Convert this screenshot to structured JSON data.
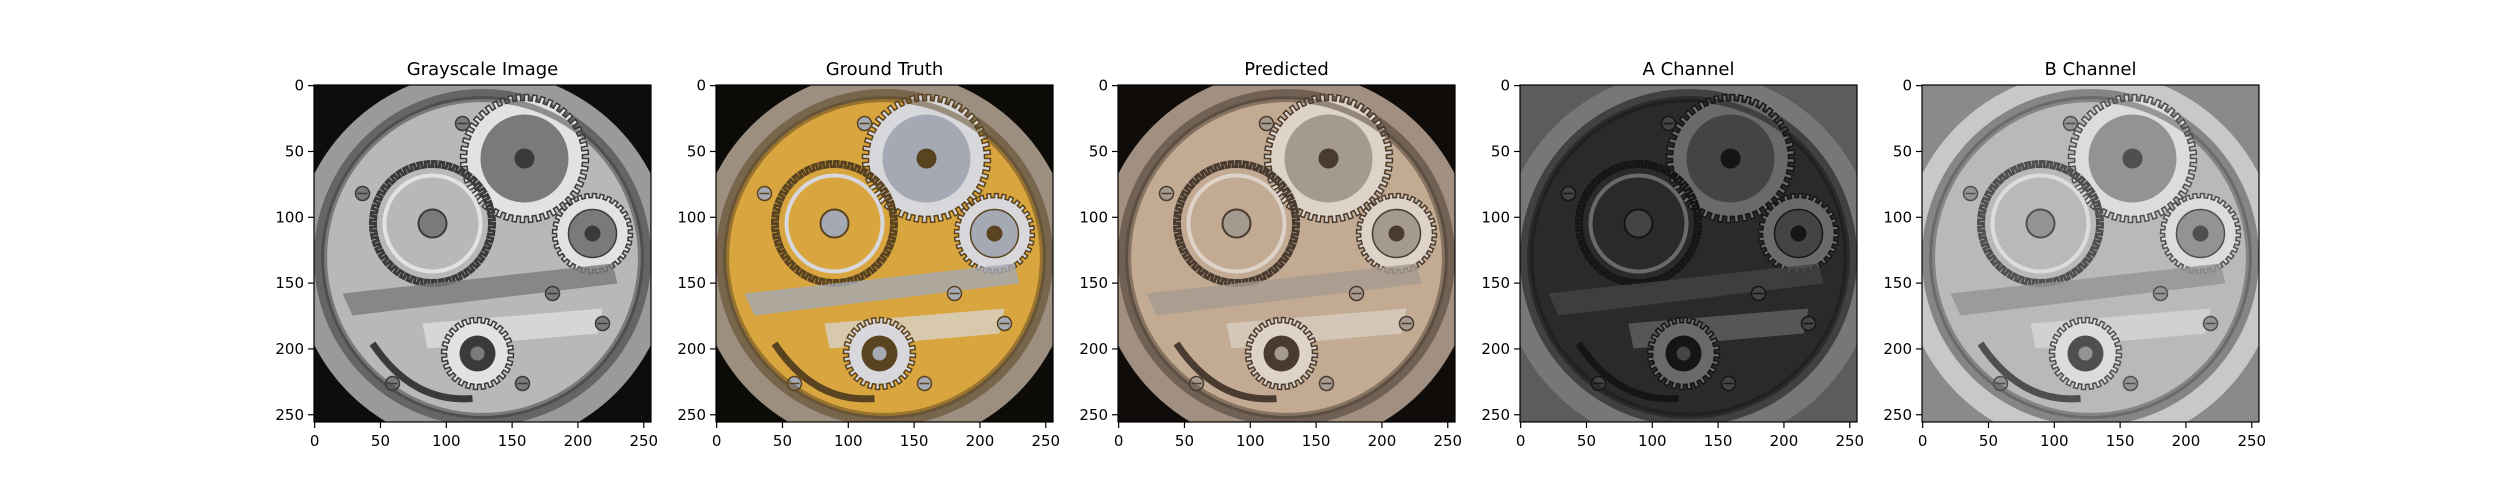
{
  "figure": {
    "panels": [
      {
        "id": "grayscale",
        "title": "Grayscale Image",
        "palette": {
          "bg": "#0d0d0d",
          "rim": "#9a9a9a",
          "plate": "#b8b8b8",
          "dark": "#3a3a3a",
          "light": "#e2e2e2",
          "accent": "#7a7a7a"
        }
      },
      {
        "id": "ground_truth",
        "title": "Ground Truth",
        "palette": {
          "bg": "#0d0b08",
          "rim": "#9c8f80",
          "plate": "#d9a53e",
          "dark": "#5a4320",
          "light": "#d8d8dc",
          "accent": "#a4a9b4"
        }
      },
      {
        "id": "predicted",
        "title": "Predicted",
        "palette": {
          "bg": "#0f0c0a",
          "rim": "#a19081",
          "plate": "#c2ab92",
          "dark": "#4a3b30",
          "light": "#ddd3c8",
          "accent": "#a59a90"
        }
      },
      {
        "id": "a_channel",
        "title": "A Channel",
        "palette": {
          "bg": "#5c5c5c",
          "rim": "#777777",
          "plate": "#2a2a2a",
          "dark": "#151515",
          "light": "#6a6a6a",
          "accent": "#444444"
        }
      },
      {
        "id": "b_channel",
        "title": "B Channel",
        "palette": {
          "bg": "#8a8a8a",
          "rim": "#c8c8c8",
          "plate": "#b9b9b9",
          "dark": "#4f4f4f",
          "light": "#dcdcdc",
          "accent": "#939393"
        }
      }
    ],
    "y_ticks": [
      "0",
      "50",
      "100",
      "150",
      "200",
      "250"
    ],
    "x_ticks": [
      "0",
      "50",
      "100",
      "150",
      "200",
      "250"
    ],
    "y_tick_values": [
      0,
      50,
      100,
      150,
      200,
      250
    ],
    "x_tick_values": [
      0,
      50,
      100,
      150,
      200,
      250
    ],
    "image_extent": [
      256,
      256
    ]
  }
}
